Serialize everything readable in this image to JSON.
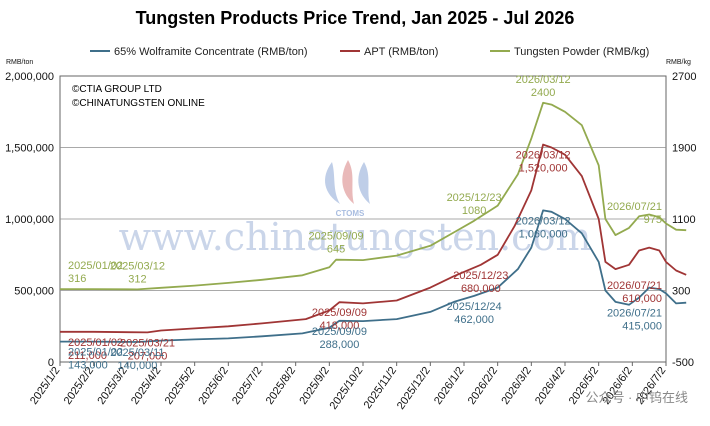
{
  "chart_data": {
    "type": "line",
    "title": "Tungsten Products Price Trend, Jan 2025 - Jul 2026",
    "left_unit": "RMB/ton",
    "right_unit": "RMB/kg",
    "credits": [
      "©CTIA GROUP LTD",
      "©CHINATUNGSTEN ONLINE"
    ],
    "watermark": "www.chinatungsten.com",
    "logo_text": "CTOMS",
    "corner_watermark": "公众号 · 中钨在线",
    "left_axis": {
      "min": 0,
      "max": 2000000,
      "ticks": [
        "0",
        "500,000",
        "1,000,000",
        "1,500,000",
        "2,000,000"
      ]
    },
    "right_axis": {
      "min": -500,
      "max": 2700,
      "ticks": [
        "-500",
        "300",
        "1100",
        "1900",
        "2700"
      ]
    },
    "x_labels": [
      "2025/1/2",
      "2025/2/2",
      "2025/3/2",
      "2025/4/2",
      "2025/5/2",
      "2025/6/2",
      "2025/7/2",
      "2025/8/2",
      "2025/9/2",
      "2025/10/2",
      "2025/11/2",
      "2025/12/2",
      "2026/1/2",
      "2026/2/2",
      "2026/3/2",
      "2026/4/2",
      "2026/5/2",
      "2026/6/2",
      "2026/7/2"
    ],
    "series": [
      {
        "name": "65% Wolframite Concentrate (RMB/ton)",
        "color": "#3f6f8a",
        "axis": "left",
        "x": [
          0,
          1,
          2.3,
          3,
          4,
          5,
          6,
          7.2,
          8,
          8.3,
          9,
          10,
          11,
          11.7,
          12.3,
          13,
          13.6,
          14,
          14.35,
          14.6,
          15,
          15.5,
          16,
          16.2,
          16.5,
          16.9,
          17.2,
          17.5,
          17.8,
          18,
          18.3,
          18.6
        ],
        "values": [
          143000,
          143000,
          140000,
          150000,
          158000,
          165000,
          180000,
          200000,
          240000,
          288000,
          286000,
          300000,
          350000,
          420000,
          462000,
          520000,
          650000,
          800000,
          1060000,
          1050000,
          1000000,
          900000,
          700000,
          500000,
          420000,
          400000,
          450000,
          520000,
          510000,
          480000,
          410000,
          415000
        ]
      },
      {
        "name": "APT (RMB/ton)",
        "color": "#a03535",
        "axis": "left",
        "x": [
          0,
          1,
          2.6,
          3,
          4,
          5,
          6,
          7.3,
          8,
          8.3,
          9,
          10,
          11,
          11.7,
          12.5,
          13,
          13.5,
          14,
          14.35,
          14.6,
          15,
          15.5,
          16,
          16.2,
          16.5,
          16.9,
          17.2,
          17.5,
          17.8,
          18,
          18.3,
          18.6
        ],
        "values": [
          211000,
          211000,
          207000,
          220000,
          235000,
          250000,
          270000,
          300000,
          360000,
          418000,
          410000,
          430000,
          520000,
          600000,
          680000,
          750000,
          950000,
          1200000,
          1520000,
          1500000,
          1450000,
          1300000,
          1000000,
          700000,
          650000,
          680000,
          780000,
          800000,
          780000,
          700000,
          640000,
          610000
        ]
      },
      {
        "name": "Tungsten Powder (RMB/kg)",
        "color": "#93aa4f",
        "axis": "right",
        "x": [
          0,
          1,
          2.3,
          3,
          4,
          5,
          6,
          7.2,
          8,
          8.2,
          9,
          10,
          11,
          11.7,
          12.3,
          13,
          13.6,
          14,
          14.35,
          14.6,
          15,
          15.5,
          16,
          16.2,
          16.5,
          16.9,
          17.2,
          17.5,
          17.8,
          18,
          18.3,
          18.6
        ],
        "values": [
          316,
          316,
          312,
          330,
          355,
          385,
          420,
          470,
          560,
          645,
          640,
          690,
          800,
          950,
          1080,
          1250,
          1600,
          2000,
          2400,
          2380,
          2300,
          2150,
          1700,
          1100,
          920,
          1000,
          1130,
          1150,
          1120,
          1050,
          980,
          975
        ]
      }
    ],
    "annotations": [
      {
        "text": "2025/01/02",
        "series": 2,
        "x": 0
      },
      {
        "text": "316",
        "series": 2,
        "x": 0
      },
      {
        "text": "2025/03/12",
        "series": 2,
        "x": 2.3
      },
      {
        "text": "312",
        "series": 2,
        "x": 2.3
      },
      {
        "text": "2025/09/09",
        "series": 2,
        "x": 8.2
      },
      {
        "text": "645",
        "series": 2,
        "x": 8.2
      },
      {
        "text": "2025/12/23",
        "series": 2,
        "x": 12.3
      },
      {
        "text": "1080",
        "series": 2,
        "x": 12.3
      },
      {
        "text": "2026/03/12",
        "series": 2,
        "x": 14.35
      },
      {
        "text": "2400",
        "series": 2,
        "x": 14.35
      },
      {
        "text": "2026/07/21",
        "series": 2,
        "x": 18.6
      },
      {
        "text": "975",
        "series": 2,
        "x": 18.6
      },
      {
        "text": "2025/01/02",
        "series": 1,
        "x": 0
      },
      {
        "text": "211,000",
        "series": 1,
        "x": 0
      },
      {
        "text": "2025/03/21",
        "series": 1,
        "x": 2.6
      },
      {
        "text": "207,000",
        "series": 1,
        "x": 2.6
      },
      {
        "text": "2025/09/09",
        "series": 1,
        "x": 8.3
      },
      {
        "text": "418,000",
        "series": 1,
        "x": 8.3
      },
      {
        "text": "2025/12/23",
        "series": 1,
        "x": 12.5
      },
      {
        "text": "680,000",
        "series": 1,
        "x": 12.5
      },
      {
        "text": "2026/03/12",
        "series": 1,
        "x": 14.35
      },
      {
        "text": "1,520,000",
        "series": 1,
        "x": 14.35
      },
      {
        "text": "2026/07/21",
        "series": 1,
        "x": 18.6
      },
      {
        "text": "610,000",
        "series": 1,
        "x": 18.6
      },
      {
        "text": "2025/01/02",
        "series": 0,
        "x": 0
      },
      {
        "text": "143,000",
        "series": 0,
        "x": 0
      },
      {
        "text": "2025/03/11",
        "series": 0,
        "x": 2.3
      },
      {
        "text": "140,000",
        "series": 0,
        "x": 2.3
      },
      {
        "text": "2025/09/09",
        "series": 0,
        "x": 8.3
      },
      {
        "text": "288,000",
        "series": 0,
        "x": 8.3
      },
      {
        "text": "2025/12/24",
        "series": 0,
        "x": 12.3
      },
      {
        "text": "462,000",
        "series": 0,
        "x": 12.3
      },
      {
        "text": "2026/03/12",
        "series": 0,
        "x": 14.35
      },
      {
        "text": "1,060,000",
        "series": 0,
        "x": 14.35
      },
      {
        "text": "2026/07/21",
        "series": 0,
        "x": 18.6
      },
      {
        "text": "415,000",
        "series": 0,
        "x": 18.6
      }
    ],
    "grid": true,
    "legend_position": "top"
  }
}
